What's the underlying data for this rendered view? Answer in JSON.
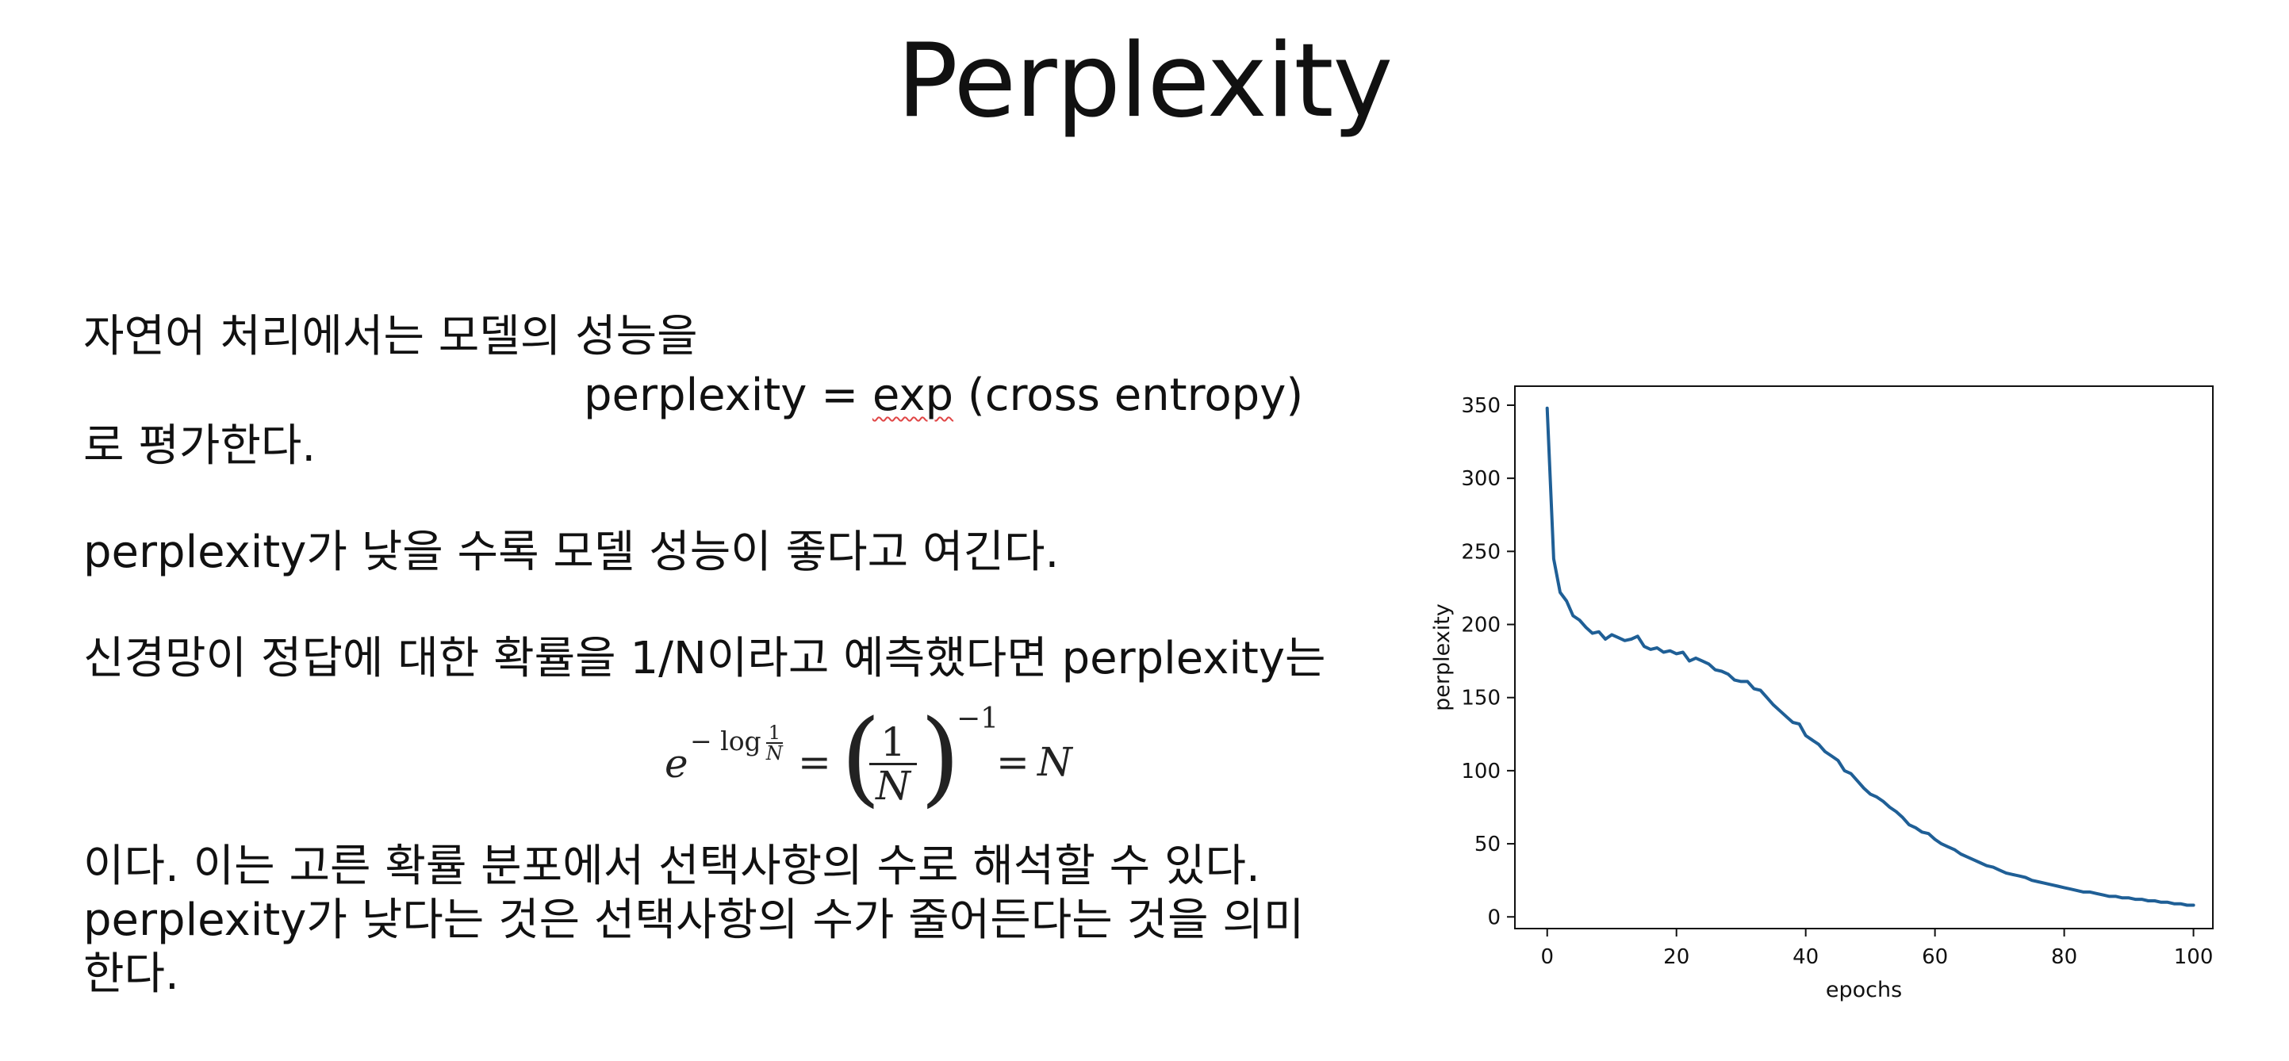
{
  "slide": {
    "title": "Perplexity",
    "line1": "자연어 처리에서는 모델의 성능을",
    "formula_prefix": "perplexity = ",
    "formula_exp": "exp",
    "formula_suffix": " (cross entropy)",
    "line2": "로 평가한다.",
    "line3": "perplexity가 낮을 수록 모델 성능이 좋다고 여긴다.",
    "line4": "신경망이 정답에 대한 확률을 1/N이라고 예측했다면 perplexity는",
    "math": {
      "base": "e",
      "exp_text": "− log",
      "exp_num": "1",
      "exp_den": "N",
      "eq1": "=",
      "paren_left": "(",
      "frac_num": "1",
      "frac_den": "N",
      "paren_right": ")",
      "power": "−1",
      "eq2": "=",
      "result": "N"
    },
    "line5": "이다. 이는 고른 확률 분포에서  선택사항의 수로 해석할 수 있다.",
    "line6": "perplexity가 낮다는 것은 선택사항의 수가 줄어든다는 것을 의미",
    "line7": "한다."
  },
  "chart_data": {
    "type": "line",
    "xlabel": "epochs",
    "ylabel": "perplexity",
    "xlim": [
      -5,
      103
    ],
    "ylim": [
      -8,
      363
    ],
    "xticks": [
      0,
      20,
      40,
      60,
      80,
      100
    ],
    "yticks": [
      0,
      50,
      100,
      150,
      200,
      250,
      300,
      350
    ],
    "grid": false,
    "series_color": "#1f5f96",
    "x": [
      0,
      1,
      2,
      3,
      4,
      5,
      6,
      7,
      8,
      9,
      10,
      11,
      12,
      13,
      14,
      15,
      16,
      17,
      18,
      19,
      20,
      21,
      22,
      23,
      24,
      25,
      26,
      27,
      28,
      29,
      30,
      31,
      32,
      33,
      34,
      35,
      36,
      37,
      38,
      39,
      40,
      41,
      42,
      43,
      44,
      45,
      46,
      47,
      48,
      49,
      50,
      51,
      52,
      53,
      54,
      55,
      56,
      57,
      58,
      59,
      60,
      61,
      62,
      63,
      64,
      65,
      66,
      67,
      68,
      69,
      70,
      71,
      72,
      73,
      74,
      75,
      76,
      77,
      78,
      79,
      80,
      81,
      82,
      83,
      84,
      85,
      86,
      87,
      88,
      89,
      90,
      91,
      92,
      93,
      94,
      95,
      96,
      97,
      98,
      99,
      100
    ],
    "y": [
      348,
      245,
      222,
      216,
      206,
      203,
      198,
      194,
      195,
      190,
      193,
      191,
      189,
      190,
      192,
      185,
      183,
      184,
      181,
      182,
      180,
      181,
      175,
      177,
      175,
      173,
      169,
      168,
      166,
      162,
      161,
      161,
      156,
      155,
      150,
      145,
      141,
      137,
      133,
      132,
      124,
      121,
      118,
      113,
      110,
      107,
      100,
      98,
      93,
      88,
      84,
      82,
      79,
      75,
      72,
      68,
      63,
      61,
      58,
      57,
      53,
      50,
      48,
      46,
      43,
      41,
      39,
      37,
      35,
      34,
      32,
      30,
      29,
      28,
      27,
      25,
      24,
      23,
      22,
      21,
      20,
      19,
      18,
      17,
      17,
      16,
      15,
      14,
      14,
      13,
      13,
      12,
      12,
      11,
      11,
      10,
      10,
      9,
      9,
      8,
      8
    ]
  }
}
